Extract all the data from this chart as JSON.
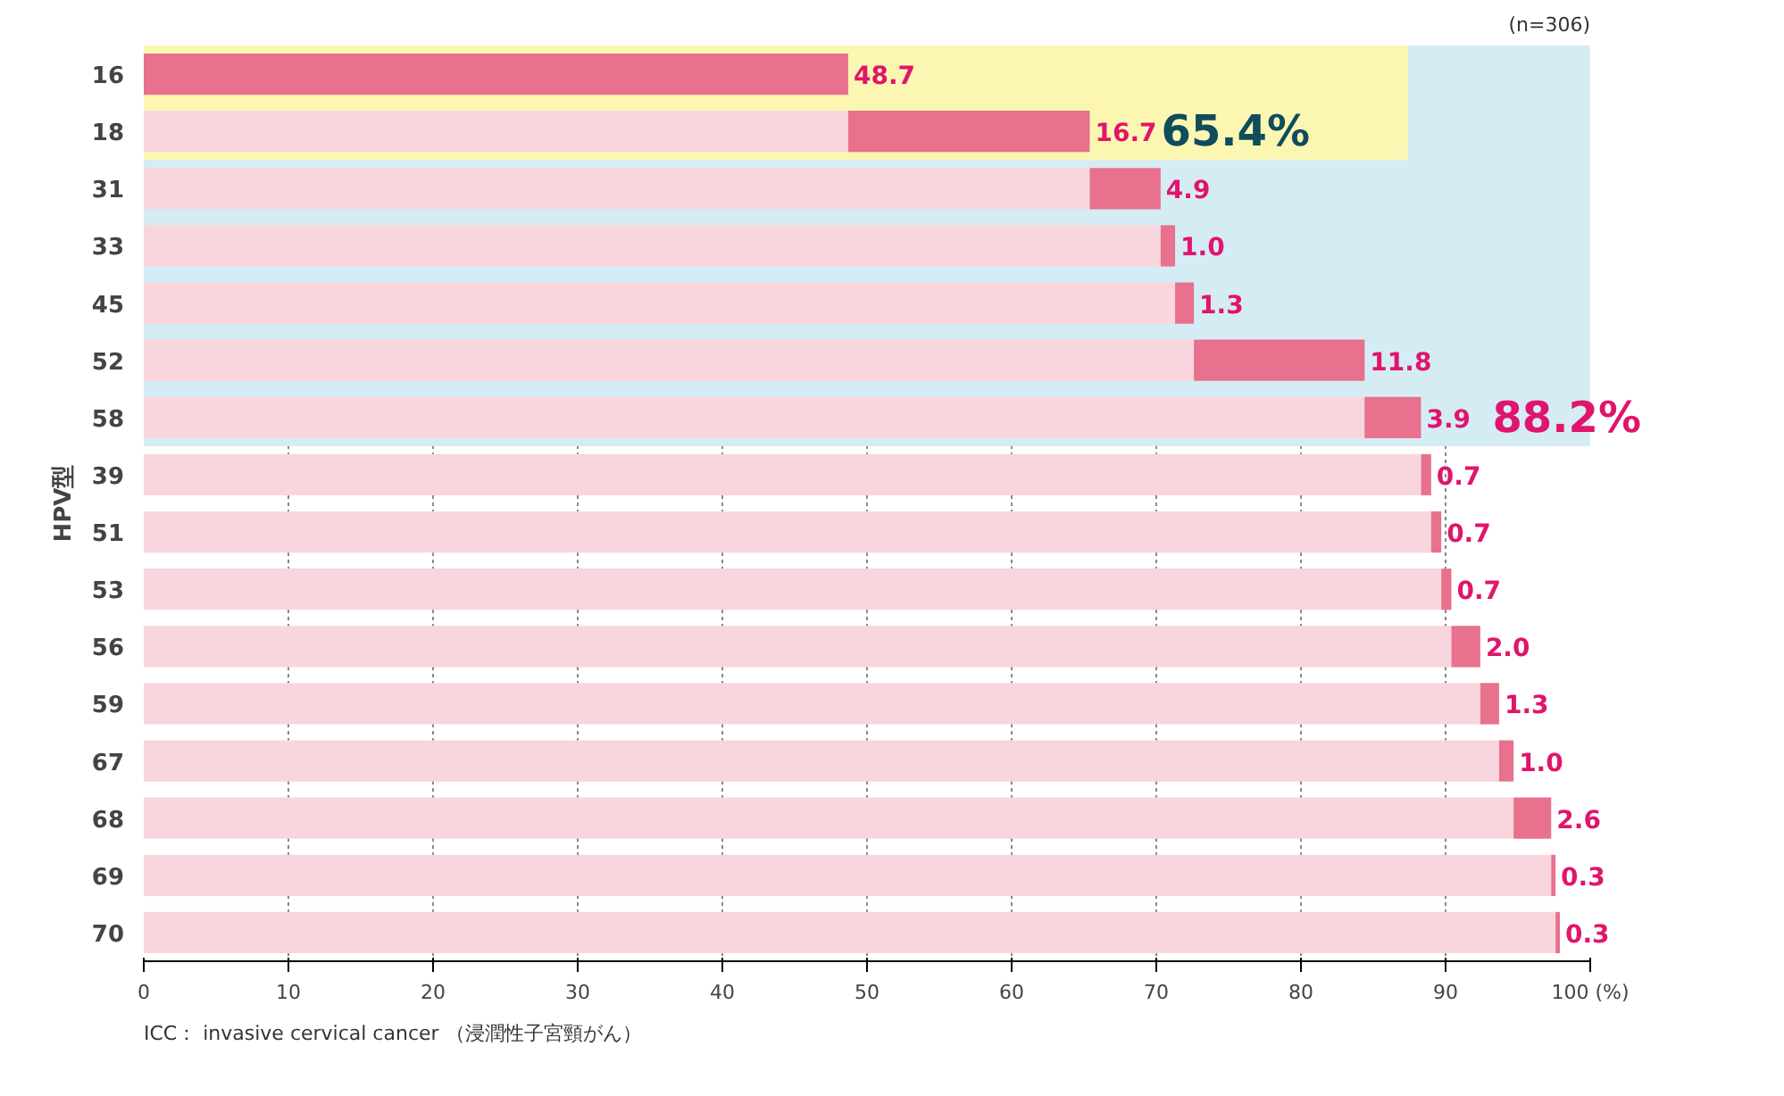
{
  "chart_data": {
    "type": "bar",
    "orientation": "horizontal",
    "ylabel": "HPV型",
    "stacked": true,
    "categories": [
      "16",
      "18",
      "31",
      "33",
      "45",
      "52",
      "58",
      "39",
      "51",
      "53",
      "56",
      "59",
      "67",
      "68",
      "69",
      "70"
    ],
    "series": [
      {
        "color": "#f9d6dd",
        "values": [
          0,
          48.7,
          65.4,
          70.3,
          71.3,
          72.6,
          84.4,
          88.3,
          89.0,
          89.7,
          90.4,
          92.4,
          93.7,
          94.7,
          97.3,
          97.6
        ]
      },
      {
        "color": "#e8718d",
        "values": [
          48.7,
          16.7,
          4.9,
          1.0,
          1.3,
          11.8,
          3.9,
          0.7,
          0.7,
          0.7,
          2.0,
          1.3,
          1.0,
          2.6,
          0.3,
          0.3
        ],
        "value_labels": [
          "48.7",
          "16.7",
          "4.9",
          "1.0",
          "1.3",
          "11.8",
          "3.9",
          "0.7",
          "0.7",
          "0.7",
          "2.0",
          "1.3",
          "1.0",
          "2.6",
          "0.3",
          "0.3"
        ]
      }
    ],
    "xlim": [
      0,
      100
    ],
    "xticks": [
      0,
      10,
      20,
      30,
      40,
      50,
      60,
      70,
      80,
      90,
      {
        "value": 100,
        "label": "100 (%)"
      }
    ],
    "grid": "x",
    "bands": [
      {
        "axis": "y",
        "from": "16",
        "to": "58",
        "label": "88.2%",
        "color": "#d6ecf5"
      },
      {
        "axis": "y",
        "from": "16",
        "to": "18",
        "label": "65.4%",
        "color": "#fbf7b3"
      }
    ],
    "annotations": [
      "(n=306)",
      "ICC： invasive cervical cancer （浸潤性子宮頸がん）"
    ]
  }
}
